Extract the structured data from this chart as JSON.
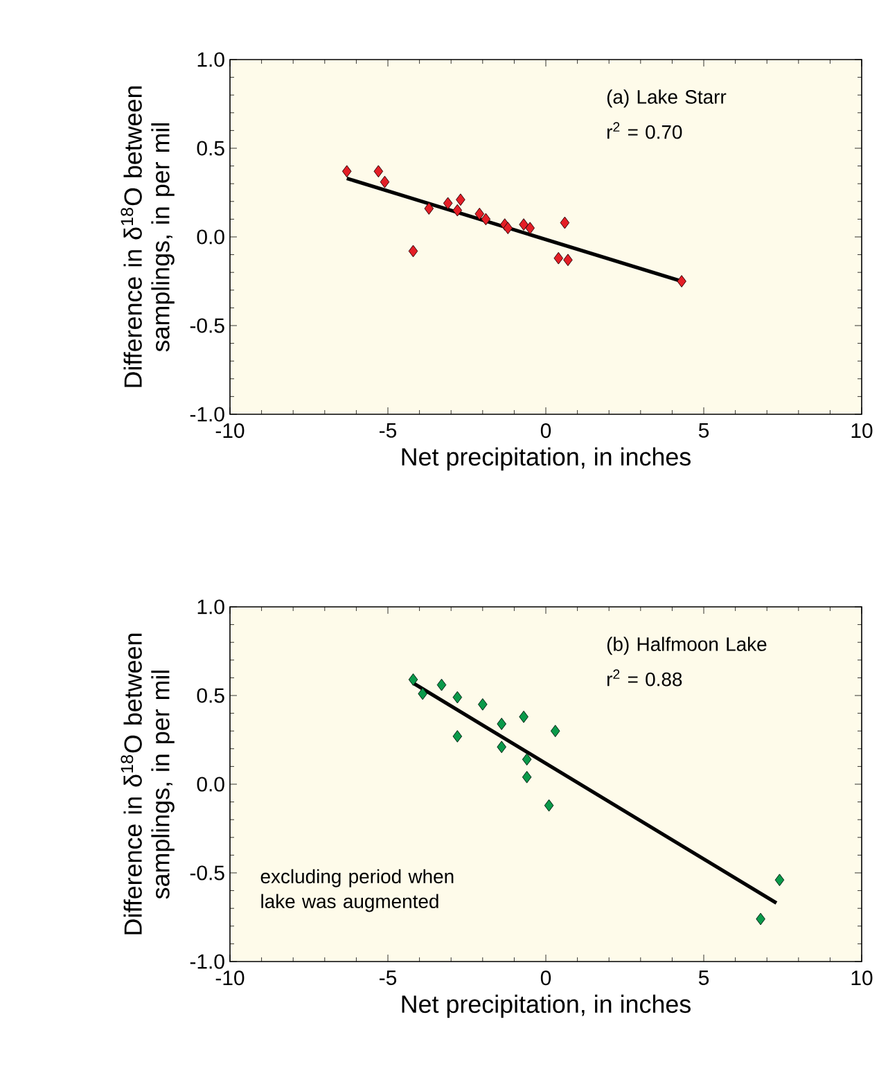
{
  "chart_data": [
    {
      "type": "scatter",
      "xlabel": "Net precipitation, in inches",
      "ylabel": "Difference in δ$^{18}$O between samplings, in per mil",
      "xlim": [
        -10,
        10
      ],
      "ylim": [
        -1,
        1
      ],
      "xticks": [
        -10,
        -5,
        0,
        5,
        10
      ],
      "yticks": [
        {
          "value": -1,
          "label": "-1.0"
        },
        {
          "value": -0.5,
          "label": "-0.5"
        },
        {
          "value": 0,
          "label": "0.0"
        },
        {
          "value": 0.5,
          "label": "0.5"
        },
        {
          "value": 1,
          "label": "1.0"
        }
      ],
      "marker": "diamond",
      "annotations": [
        "(a) Lake Starr",
        "r$^{2}$ = 0.70"
      ],
      "series": [
        {
          "color": "#e41e26",
          "x": [
            -6.3,
            -5.3,
            -5.1,
            -4.2,
            -3.7,
            -3.1,
            -2.8,
            -2.7,
            -2.1,
            -1.9,
            -1.3,
            -1.2,
            -0.7,
            -0.5,
            0.4,
            0.6,
            0.7,
            4.3
          ],
          "values": [
            0.37,
            0.37,
            0.31,
            -0.08,
            0.16,
            0.19,
            0.15,
            0.21,
            0.13,
            0.1,
            0.07,
            0.05,
            0.07,
            0.05,
            -0.12,
            0.08,
            -0.13,
            -0.25
          ]
        },
        {
          "type": "line",
          "color": "#000000",
          "marker": "none",
          "x": [
            -6.3,
            4.3
          ],
          "values": [
            0.33,
            -0.25
          ]
        }
      ]
    },
    {
      "type": "scatter",
      "xlabel": "Net precipitation, in inches",
      "ylabel": "Difference in δ$^{18}$O between samplings, in per mil",
      "xlim": [
        -10,
        10
      ],
      "ylim": [
        -1,
        1
      ],
      "xticks": [
        -10,
        -5,
        0,
        5,
        10
      ],
      "yticks": [
        {
          "value": -1,
          "label": "-1.0"
        },
        {
          "value": -0.5,
          "label": "-0.5"
        },
        {
          "value": 0,
          "label": "0.0"
        },
        {
          "value": 0.5,
          "label": "0.5"
        },
        {
          "value": 1,
          "label": "1.0"
        }
      ],
      "marker": "diamond",
      "annotations": [
        "(b) Halfmoon Lake",
        "r$^{2}$ = 0.88",
        "excluding period when lake was augmented"
      ],
      "series": [
        {
          "color": "#0a9a4a",
          "x": [
            -4.2,
            -3.9,
            -3.3,
            -2.8,
            -2.8,
            -2.0,
            -1.4,
            -1.4,
            -0.7,
            -0.6,
            -0.6,
            0.1,
            0.3,
            6.8,
            7.4
          ],
          "values": [
            0.59,
            0.51,
            0.56,
            0.49,
            0.27,
            0.45,
            0.34,
            0.21,
            0.38,
            0.14,
            0.04,
            -0.12,
            0.3,
            -0.76,
            -0.54
          ]
        },
        {
          "type": "line",
          "color": "#000000",
          "marker": "none",
          "x": [
            -4.2,
            7.3
          ],
          "values": [
            0.57,
            -0.67
          ]
        }
      ]
    }
  ]
}
